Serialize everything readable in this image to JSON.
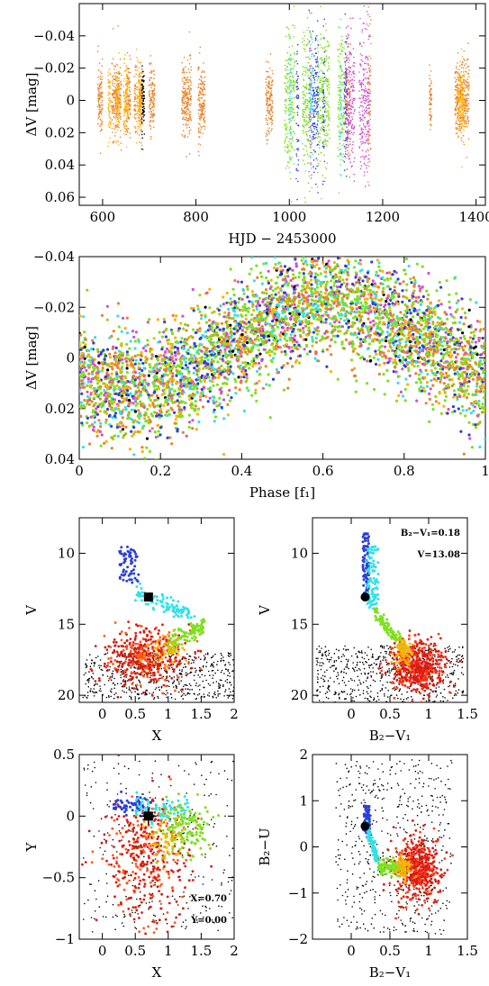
{
  "chart_data": [
    {
      "type": "scatter",
      "panel": "top-light-curve",
      "xlabel": "HJD − 2453000",
      "ylabel": "ΔV [mag]",
      "xlim": [
        550,
        1420
      ],
      "ylim": [
        0.065,
        -0.06
      ],
      "xticks": [
        600,
        800,
        1000,
        1200,
        1400
      ],
      "yticks": [
        -0.04,
        -0.02,
        0,
        0.02,
        0.04,
        0.06
      ],
      "ytick_labels": [
        "−0.04",
        "−0.02",
        "0",
        "0.02",
        "0.04",
        "0.06"
      ],
      "series": [
        {
          "color": "#e8832a",
          "segments": [
            [
              590,
              600
            ],
            [
              620,
              640
            ],
            [
              650,
              660
            ],
            [
              668,
              672
            ],
            [
              678,
              688
            ],
            [
              700,
              712
            ],
            [
              770,
              790
            ],
            [
              805,
              820
            ],
            [
              950,
              965
            ],
            [
              1120,
              1130
            ],
            [
              1168,
              1175
            ],
            [
              1300,
              1305
            ],
            [
              1355,
              1385
            ]
          ]
        },
        {
          "color": "#ffb000",
          "segments": [
            [
              612,
              618
            ],
            [
              628,
              636
            ],
            [
              645,
              655
            ],
            [
              673,
              684
            ],
            [
              1360,
              1375
            ]
          ]
        },
        {
          "color": "#000000",
          "segments": [
            [
              684,
              690
            ]
          ]
        },
        {
          "color": "#7fe01f",
          "segments": [
            [
              990,
              1012
            ],
            [
              1028,
              1046
            ],
            [
              1060,
              1086
            ],
            [
              1104,
              1118
            ]
          ]
        },
        {
          "color": "#2a40d8",
          "segments": [
            [
              1015,
              1020
            ],
            [
              1050,
              1062
            ],
            [
              1072,
              1076
            ],
            [
              1118,
              1124
            ]
          ]
        },
        {
          "color": "#d050d0",
          "segments": [
            [
              1042,
              1048
            ],
            [
              1120,
              1140
            ],
            [
              1150,
              1172
            ]
          ]
        },
        {
          "color": "#33e0e8",
          "segments": [
            [
              1000,
              1004
            ],
            [
              1044,
              1050
            ],
            [
              1108,
              1112
            ]
          ]
        }
      ]
    },
    {
      "type": "scatter",
      "panel": "phase-diagram",
      "xlabel": "Phase [f₁]",
      "ylabel": "ΔV [mag]",
      "xlim": [
        0,
        1
      ],
      "ylim": [
        0.04,
        -0.04
      ],
      "xticks": [
        0,
        0.2,
        0.4,
        0.6,
        0.8,
        1
      ],
      "xtick_labels": [
        "0",
        "0.2",
        "0.4",
        "0.6",
        "0.8",
        "1"
      ],
      "yticks": [
        -0.04,
        -0.02,
        0,
        0.02,
        0.04
      ],
      "ytick_labels": [
        "−0.04",
        "−0.02",
        "0",
        "0.02",
        "0.04"
      ],
      "model": {
        "mean_mag": -0.005,
        "amplitude": 0.017,
        "max_phase": 0.62
      }
    },
    {
      "type": "scatter",
      "panel": "cmd-V-vs-X",
      "xlabel": "X",
      "ylabel": "V",
      "xlim": [
        -0.35,
        2.0
      ],
      "ylim": [
        20.5,
        7.5
      ],
      "xticks": [
        0,
        0.5,
        1,
        1.5,
        2
      ],
      "xtick_labels": [
        "0",
        "0.5",
        "1",
        "1.5",
        "2"
      ],
      "yticks": [
        10,
        15,
        20
      ],
      "marker": {
        "x": 0.7,
        "y": 13.08
      }
    },
    {
      "type": "scatter",
      "panel": "cmd-V-vs-B2V1",
      "xlabel": "B₂−V₁",
      "ylabel": "V",
      "xlim": [
        -0.5,
        1.5
      ],
      "ylim": [
        20.5,
        7.5
      ],
      "xticks": [
        0,
        0.5,
        1,
        1.5
      ],
      "xtick_labels": [
        "0",
        "0.5",
        "1",
        "1.5"
      ],
      "yticks": [
        10,
        15,
        20
      ],
      "marker": {
        "x": 0.18,
        "y": 13.08
      },
      "annotations": [
        "B₂−V₁=0.18",
        "V=13.08"
      ]
    },
    {
      "type": "scatter",
      "panel": "Y-vs-X",
      "xlabel": "X",
      "ylabel": "Y",
      "xlim": [
        -0.35,
        2.0
      ],
      "ylim": [
        -1.0,
        0.5
      ],
      "xticks": [
        0,
        0.5,
        1,
        1.5,
        2
      ],
      "xtick_labels": [
        "0",
        "0.5",
        "1",
        "1.5",
        "2"
      ],
      "yticks": [
        -1,
        -0.5,
        0,
        0.5
      ],
      "ytick_labels": [
        "−1",
        "−0.5",
        "0",
        "0.5"
      ],
      "marker": {
        "x": 0.7,
        "y": 0.0
      },
      "annotations": [
        "X=0.70",
        "Y=0.00"
      ]
    },
    {
      "type": "scatter",
      "panel": "B2U-vs-B2V1",
      "xlabel": "B₂−V₁",
      "ylabel": "B₂−U",
      "xlim": [
        -0.5,
        1.5
      ],
      "ylim": [
        -2.0,
        2.0
      ],
      "xticks": [
        0,
        0.5,
        1,
        1.5
      ],
      "xtick_labels": [
        "0",
        "0.5",
        "1",
        "1.5"
      ],
      "yticks": [
        -2,
        -1,
        0,
        1,
        2
      ],
      "ytick_labels": [
        "−2",
        "−1",
        "0",
        "1",
        "2"
      ],
      "marker": {
        "x": 0.18,
        "y": 0.45
      }
    }
  ]
}
